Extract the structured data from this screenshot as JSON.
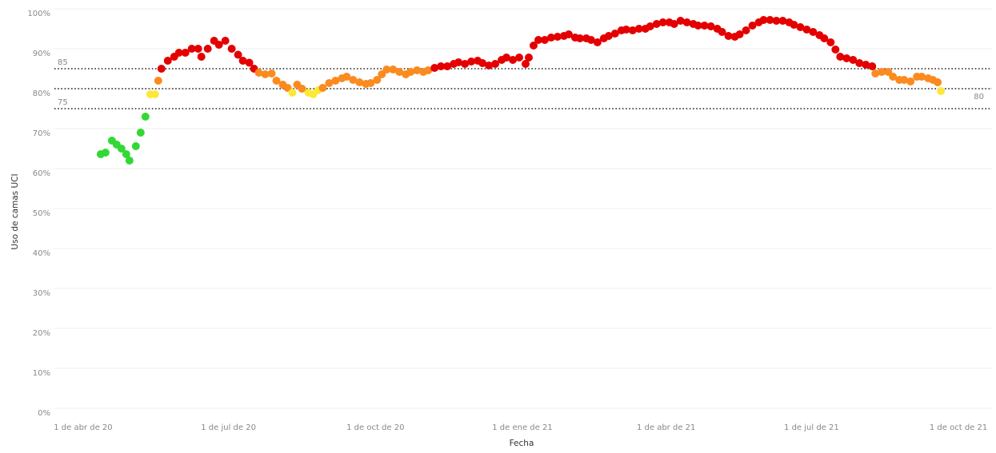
{
  "chart_data": {
    "type": "scatter",
    "xlabel": "Fecha",
    "ylabel": "Uso de camas UCI",
    "x": [
      "2020-04-12",
      "2020-04-15",
      "2020-04-19",
      "2020-04-22",
      "2020-04-25",
      "2020-04-28",
      "2020-04-30",
      "2020-05-04",
      "2020-05-07",
      "2020-05-10",
      "2020-05-13",
      "2020-05-16",
      "2020-05-18",
      "2020-05-20",
      "2020-05-24",
      "2020-05-28",
      "2020-05-31",
      "2020-06-04",
      "2020-06-08",
      "2020-06-12",
      "2020-06-14",
      "2020-06-18",
      "2020-06-22",
      "2020-06-25",
      "2020-06-29",
      "2020-07-03",
      "2020-07-07",
      "2020-07-10",
      "2020-07-14",
      "2020-07-17",
      "2020-07-20",
      "2020-07-24",
      "2020-07-28",
      "2020-07-31",
      "2020-08-04",
      "2020-08-07",
      "2020-08-10",
      "2020-08-13",
      "2020-08-16",
      "2020-08-20",
      "2020-08-23",
      "2020-08-26",
      "2020-08-29",
      "2020-09-02",
      "2020-09-06",
      "2020-09-10",
      "2020-09-13",
      "2020-09-17",
      "2020-09-21",
      "2020-09-25",
      "2020-09-28",
      "2020-10-02",
      "2020-10-05",
      "2020-10-08",
      "2020-10-12",
      "2020-10-16",
      "2020-10-20",
      "2020-10-23",
      "2020-10-27",
      "2020-10-31",
      "2020-11-03",
      "2020-11-07",
      "2020-11-11",
      "2020-11-15",
      "2020-11-19",
      "2020-11-22",
      "2020-11-26",
      "2020-11-30",
      "2020-12-04",
      "2020-12-07",
      "2020-12-11",
      "2020-12-15",
      "2020-12-19",
      "2020-12-22",
      "2020-12-26",
      "2020-12-30",
      "2021-01-03",
      "2021-01-05",
      "2021-01-08",
      "2021-01-11",
      "2021-01-15",
      "2021-01-19",
      "2021-01-23",
      "2021-01-27",
      "2021-01-30",
      "2021-02-03",
      "2021-02-06",
      "2021-02-10",
      "2021-02-13",
      "2021-02-17",
      "2021-02-21",
      "2021-02-24",
      "2021-02-28",
      "2021-03-04",
      "2021-03-07",
      "2021-03-11",
      "2021-03-15",
      "2021-03-19",
      "2021-03-22",
      "2021-03-26",
      "2021-03-30",
      "2021-04-03",
      "2021-04-06",
      "2021-04-10",
      "2021-04-14",
      "2021-04-18",
      "2021-04-21",
      "2021-04-25",
      "2021-04-29",
      "2021-05-03",
      "2021-05-06",
      "2021-05-10",
      "2021-05-14",
      "2021-05-17",
      "2021-05-21",
      "2021-05-25",
      "2021-05-29",
      "2021-06-01",
      "2021-06-05",
      "2021-06-09",
      "2021-06-13",
      "2021-06-17",
      "2021-06-20",
      "2021-06-24",
      "2021-06-28",
      "2021-07-02",
      "2021-07-06",
      "2021-07-09",
      "2021-07-13",
      "2021-07-16",
      "2021-07-19",
      "2021-07-23",
      "2021-07-27",
      "2021-07-31",
      "2021-08-04",
      "2021-08-08",
      "2021-08-10",
      "2021-08-14",
      "2021-08-18",
      "2021-08-21",
      "2021-08-25",
      "2021-08-28",
      "2021-09-01",
      "2021-09-05",
      "2021-09-08",
      "2021-09-12",
      "2021-09-15",
      "2021-09-18",
      "2021-09-20"
    ],
    "values": [
      63.6,
      64,
      67,
      66,
      65,
      63.6,
      62,
      65.6,
      69,
      73,
      78.6,
      78.6,
      82,
      85,
      87,
      88,
      89,
      89,
      90,
      90,
      88,
      90,
      92,
      91,
      92,
      90,
      88.5,
      87,
      86.5,
      85,
      84,
      83.6,
      83.8,
      82,
      81,
      80.2,
      79,
      81,
      80,
      79,
      78.6,
      79.6,
      80.2,
      81.4,
      82,
      82.6,
      83,
      82.2,
      81.6,
      81.2,
      81.4,
      82.2,
      83.6,
      84.8,
      84.8,
      84.2,
      83.6,
      84.2,
      84.6,
      84.2,
      84.6,
      85.2,
      85.6,
      85.6,
      86.2,
      86.6,
      86.2,
      86.8,
      87,
      86.4,
      85.8,
      86.2,
      87.2,
      87.8,
      87.2,
      87.8,
      86.2,
      87.8,
      90.8,
      92.2,
      92.2,
      92.8,
      93,
      93.2,
      93.6,
      92.8,
      92.6,
      92.6,
      92.2,
      91.6,
      92.6,
      93.2,
      93.8,
      94.6,
      94.8,
      94.6,
      95,
      95,
      95.6,
      96.2,
      96.6,
      96.6,
      96.2,
      97,
      96.6,
      96.2,
      95.8,
      95.8,
      95.6,
      95,
      94.2,
      93.2,
      93,
      93.6,
      94.6,
      95.8,
      96.6,
      97.2,
      97.2,
      97,
      97,
      96.6,
      96,
      95.4,
      94.8,
      94.2,
      93.4,
      92.6,
      91.6,
      89.8,
      88,
      87.6,
      87.2,
      86.4,
      86,
      85.6,
      83.8,
      84.2,
      84.2,
      83,
      82.2,
      82.2,
      81.8,
      83,
      83,
      82.6,
      82.2,
      81.6,
      79.4
    ],
    "colors": [
      "#34d834",
      "#fbe839",
      "#fb8a1f",
      "#e40000"
    ],
    "reference_lines": [
      85,
      80,
      75
    ],
    "xlim": [
      "2020-03-14",
      "2021-10-22"
    ],
    "xticks": [
      {
        "value": "2020-04-01",
        "label": "1 de abr de 20"
      },
      {
        "value": "2020-07-01",
        "label": "1 de jul de 20"
      },
      {
        "value": "2020-10-01",
        "label": "1 de oct de 20"
      },
      {
        "value": "2021-01-01",
        "label": "1 de ene de 21"
      },
      {
        "value": "2021-04-01",
        "label": "1 de abr de 21"
      },
      {
        "value": "2021-07-01",
        "label": "1 de jul de 21"
      },
      {
        "value": "2021-10-01",
        "label": "1 de oct de 21"
      }
    ],
    "ylim": [
      0,
      100
    ],
    "yticks": [
      {
        "value": 0,
        "label": "0%"
      },
      {
        "value": 10,
        "label": "10%"
      },
      {
        "value": 20,
        "label": "20%"
      },
      {
        "value": 30,
        "label": "30%"
      },
      {
        "value": 40,
        "label": "40%"
      },
      {
        "value": 50,
        "label": "50%"
      },
      {
        "value": 60,
        "label": "60%"
      },
      {
        "value": 70,
        "label": "70%"
      },
      {
        "value": 80,
        "label": "80%"
      },
      {
        "value": 90,
        "label": "90%"
      },
      {
        "value": 100,
        "label": "100%"
      }
    ],
    "grid": true
  }
}
